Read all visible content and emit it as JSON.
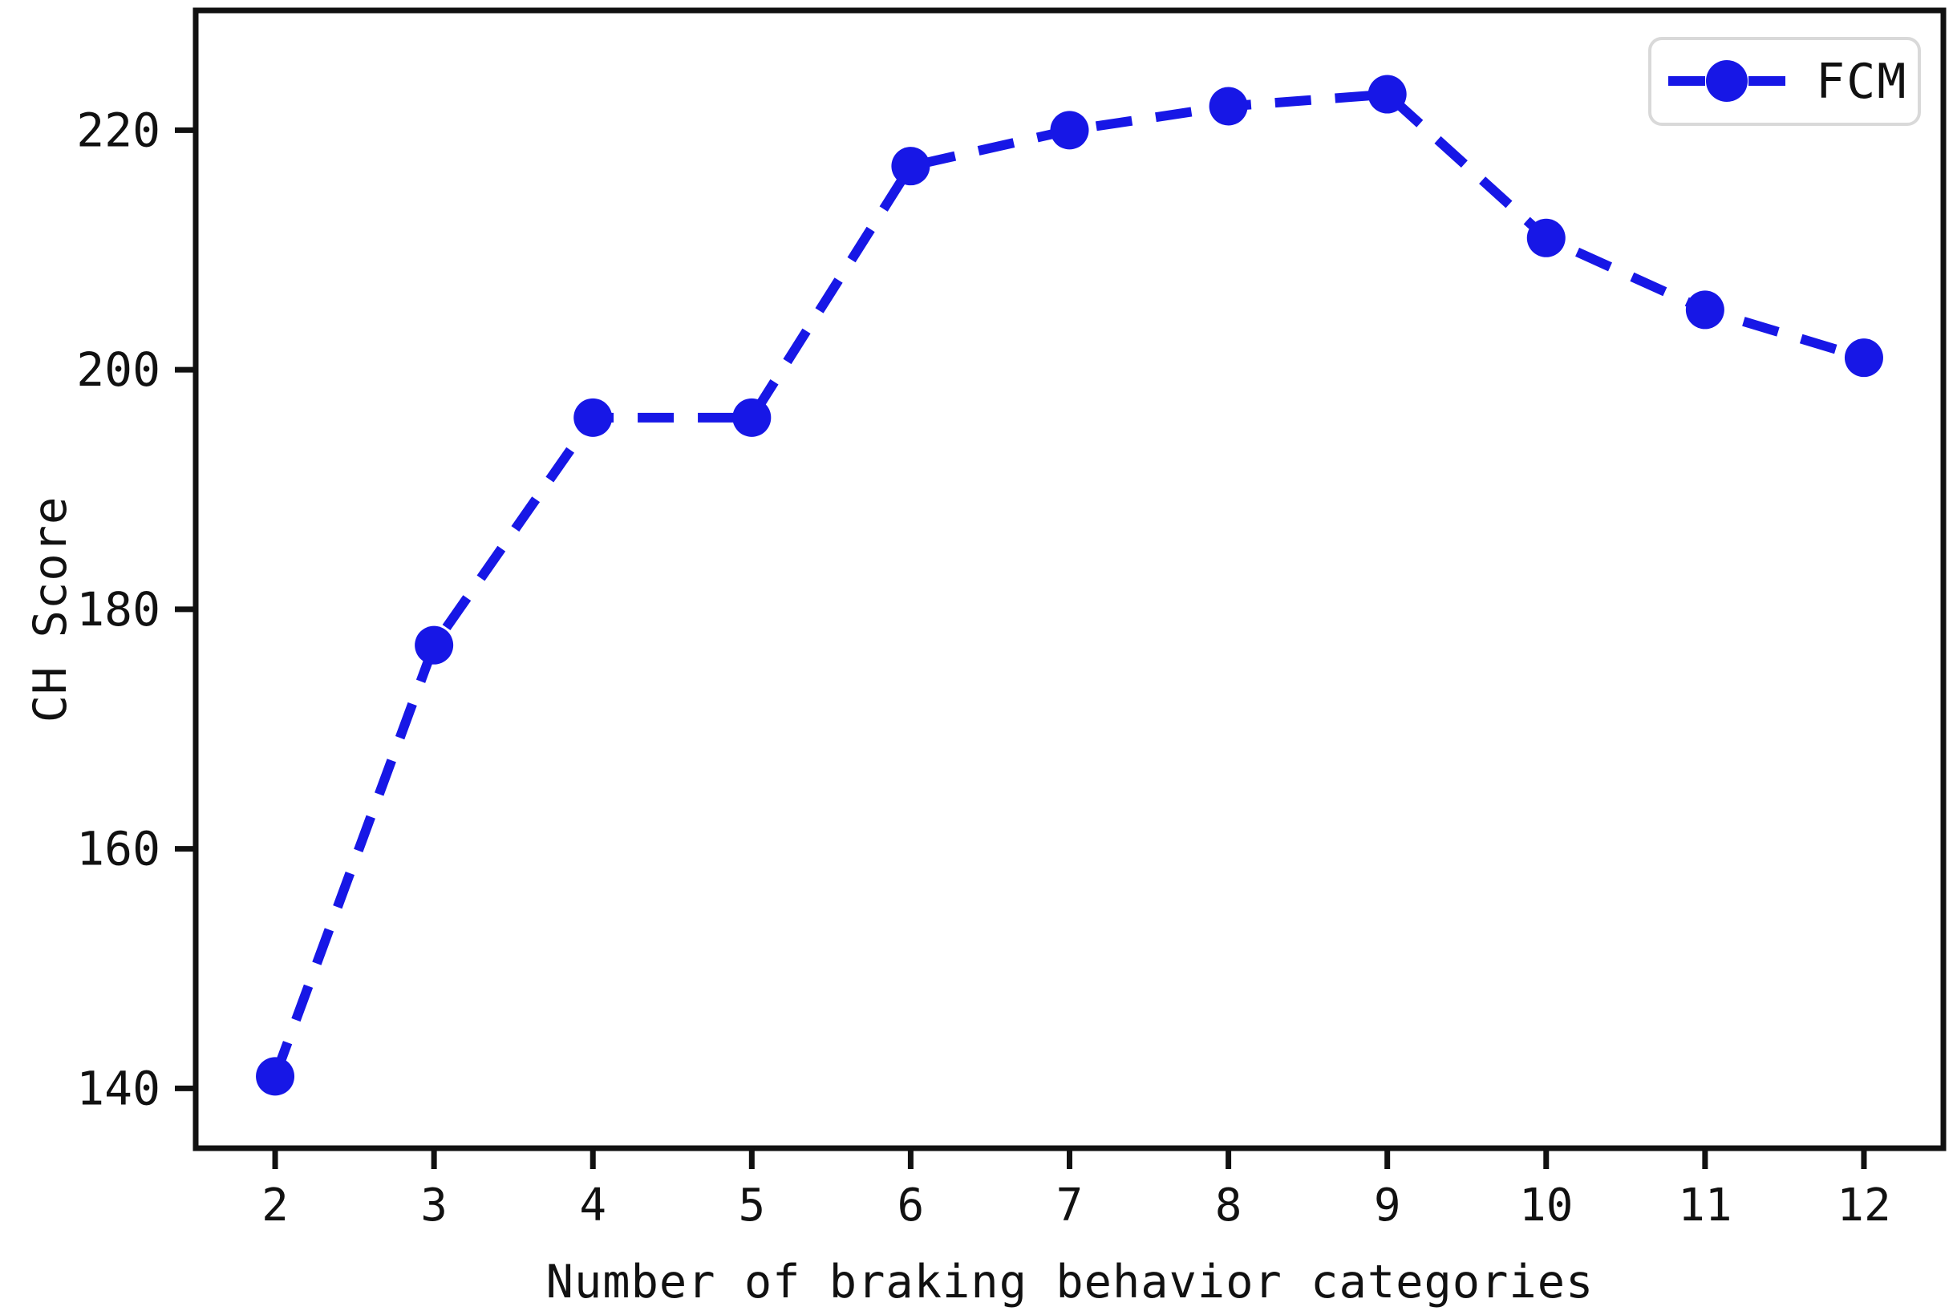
{
  "chart_data": {
    "type": "line",
    "title": "",
    "xlabel": "Number of braking behavior categories",
    "ylabel": "CH Score",
    "x": [
      2,
      3,
      4,
      5,
      6,
      7,
      8,
      9,
      10,
      11,
      12
    ],
    "series": [
      {
        "name": "FCM",
        "values": [
          141,
          177,
          196,
          196,
          217,
          220,
          222,
          223,
          211,
          205,
          201
        ],
        "color": "#1717E6",
        "line_style": "dashed",
        "marker": "circle"
      }
    ],
    "xticks": [
      2,
      3,
      4,
      5,
      6,
      7,
      8,
      9,
      10,
      11,
      12
    ],
    "yticks": [
      140,
      160,
      180,
      200,
      220
    ],
    "xlim": [
      1.5,
      12.5
    ],
    "ylim": [
      135,
      230
    ],
    "grid": false,
    "legend": {
      "position": "top-right",
      "entries": [
        "FCM"
      ]
    }
  },
  "colors": {
    "series_blue": "#1717E6",
    "axis": "#111111",
    "text": "#111111",
    "legend_border": "#d9d9d9",
    "background": "#ffffff"
  }
}
